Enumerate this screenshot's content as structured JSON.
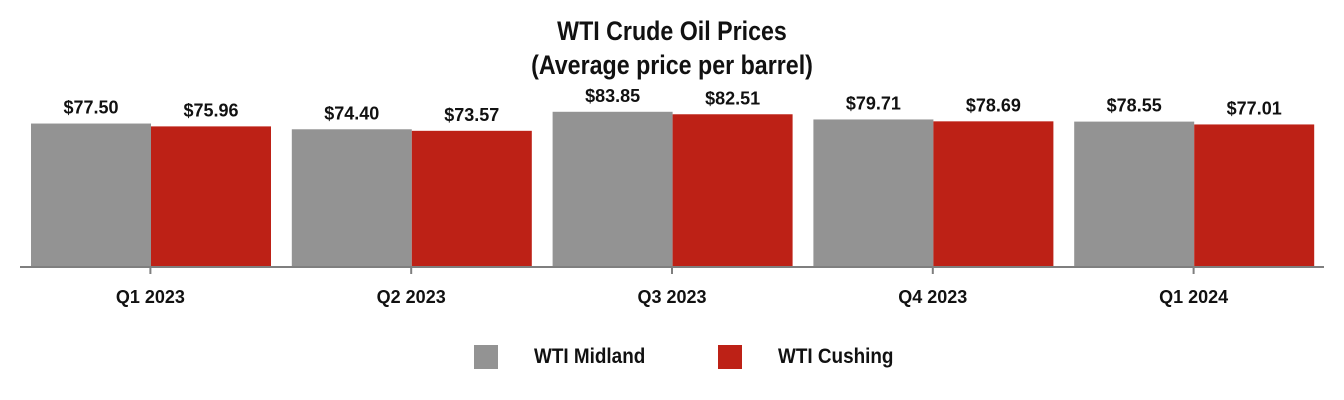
{
  "chart_data": {
    "type": "bar",
    "title_line1": "WTI Crude Oil Prices",
    "title_line2": "(Average price per barrel)",
    "categories": [
      "Q1 2023",
      "Q2 2023",
      "Q3 2023",
      "Q4 2023",
      "Q1 2024"
    ],
    "series": [
      {
        "name": "WTI Midland",
        "color": "#939393",
        "values": [
          77.5,
          74.4,
          83.85,
          79.71,
          78.55
        ],
        "labels": [
          "$77.50",
          "$74.40",
          "$83.85",
          "$79.71",
          "$78.55"
        ]
      },
      {
        "name": "WTI Cushing",
        "color": "#BD2116",
        "values": [
          75.96,
          73.57,
          82.51,
          78.69,
          77.01
        ],
        "labels": [
          "$75.96",
          "$73.57",
          "$82.51",
          "$78.69",
          "$77.01"
        ]
      }
    ],
    "ylim": [
      0,
      94
    ],
    "xlabel": "",
    "ylabel": "",
    "grid": false,
    "legend_position": "bottom"
  }
}
